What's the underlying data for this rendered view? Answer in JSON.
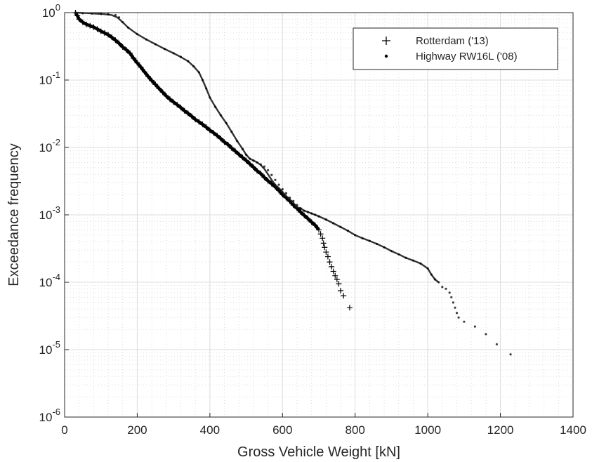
{
  "chart_data": {
    "type": "scatter",
    "xlabel": "Gross Vehicle Weight [kN]",
    "ylabel": "Exceedance frequency",
    "xlim": [
      0,
      1400
    ],
    "ylim": [
      1e-06,
      1
    ],
    "yscale": "log",
    "grid": true,
    "minor_grid": true,
    "legend_position": "top-right",
    "x_ticks": [
      "0",
      "200",
      "400",
      "600",
      "800",
      "1000",
      "1200",
      "1400"
    ],
    "y_ticks": [
      {
        "base": "10",
        "exp": "-6"
      },
      {
        "base": "10",
        "exp": "-5"
      },
      {
        "base": "10",
        "exp": "-4"
      },
      {
        "base": "10",
        "exp": "-3"
      },
      {
        "base": "10",
        "exp": "-2"
      },
      {
        "base": "10",
        "exp": "-1"
      },
      {
        "base": "10",
        "exp": "0"
      }
    ],
    "series": [
      {
        "name": "Rotterdam ('13)",
        "marker": "plus",
        "color": "#000000",
        "points": [
          [
            30,
            1.0
          ],
          [
            35,
            0.9
          ],
          [
            40,
            0.8
          ],
          [
            50,
            0.72
          ],
          [
            60,
            0.67
          ],
          [
            70,
            0.64
          ],
          [
            80,
            0.61
          ],
          [
            90,
            0.57
          ],
          [
            100,
            0.53
          ],
          [
            110,
            0.5
          ],
          [
            120,
            0.47
          ],
          [
            130,
            0.43
          ],
          [
            140,
            0.39
          ],
          [
            150,
            0.35
          ],
          [
            160,
            0.31
          ],
          [
            170,
            0.28
          ],
          [
            180,
            0.25
          ],
          [
            190,
            0.21
          ],
          [
            200,
            0.18
          ],
          [
            210,
            0.155
          ],
          [
            220,
            0.132
          ],
          [
            230,
            0.113
          ],
          [
            240,
            0.098
          ],
          [
            250,
            0.086
          ],
          [
            260,
            0.075
          ],
          [
            270,
            0.066
          ],
          [
            280,
            0.058
          ],
          [
            290,
            0.052
          ],
          [
            300,
            0.047
          ],
          [
            310,
            0.043
          ],
          [
            320,
            0.039
          ],
          [
            330,
            0.035
          ],
          [
            340,
            0.032
          ],
          [
            350,
            0.029
          ],
          [
            360,
            0.026
          ],
          [
            370,
            0.024
          ],
          [
            380,
            0.022
          ],
          [
            390,
            0.02
          ],
          [
            400,
            0.018
          ],
          [
            410,
            0.0165
          ],
          [
            420,
            0.015
          ],
          [
            430,
            0.0135
          ],
          [
            440,
            0.012
          ],
          [
            450,
            0.011
          ],
          [
            460,
            0.0098
          ],
          [
            470,
            0.0088
          ],
          [
            480,
            0.0079
          ],
          [
            490,
            0.0071
          ],
          [
            500,
            0.0064
          ],
          [
            510,
            0.0057
          ],
          [
            520,
            0.0051
          ],
          [
            530,
            0.0045
          ],
          [
            540,
            0.0041
          ],
          [
            550,
            0.0036
          ],
          [
            560,
            0.0032
          ],
          [
            570,
            0.0029
          ],
          [
            580,
            0.0026
          ],
          [
            590,
            0.0023
          ],
          [
            600,
            0.002
          ],
          [
            610,
            0.0018
          ],
          [
            620,
            0.0016
          ],
          [
            630,
            0.0014
          ],
          [
            640,
            0.00125
          ],
          [
            650,
            0.0011
          ],
          [
            660,
            0.00098
          ],
          [
            670,
            0.00088
          ],
          [
            680,
            0.00078
          ],
          [
            690,
            0.0007
          ],
          [
            700,
            0.0006
          ],
          [
            705,
            0.00052
          ],
          [
            710,
            0.00045
          ],
          [
            713,
            0.00038
          ],
          [
            716,
            0.00033
          ],
          [
            720,
            0.00028
          ],
          [
            725,
            0.00024
          ],
          [
            730,
            0.0002
          ],
          [
            735,
            0.00017
          ],
          [
            740,
            0.000145
          ],
          [
            745,
            0.000125
          ],
          [
            750,
            0.00011
          ],
          [
            755,
            9.5e-05
          ],
          [
            760,
            7.5e-05
          ],
          [
            768,
            6.3e-05
          ],
          [
            785,
            4.2e-05
          ]
        ]
      },
      {
        "name": "Highway RW16L ('08)",
        "marker": "dot",
        "color": "#000000",
        "points": [
          [
            30,
            1.0
          ],
          [
            50,
            0.98
          ],
          [
            75,
            0.97
          ],
          [
            100,
            0.96
          ],
          [
            120,
            0.95
          ],
          [
            140,
            0.92
          ],
          [
            150,
            0.85
          ],
          [
            160,
            0.72
          ],
          [
            175,
            0.6
          ],
          [
            200,
            0.48
          ],
          [
            225,
            0.4
          ],
          [
            250,
            0.34
          ],
          [
            275,
            0.29
          ],
          [
            300,
            0.25
          ],
          [
            320,
            0.22
          ],
          [
            340,
            0.19
          ],
          [
            355,
            0.16
          ],
          [
            370,
            0.13
          ],
          [
            380,
            0.1
          ],
          [
            390,
            0.075
          ],
          [
            400,
            0.055
          ],
          [
            415,
            0.04
          ],
          [
            430,
            0.03
          ],
          [
            445,
            0.023
          ],
          [
            460,
            0.017
          ],
          [
            475,
            0.0125
          ],
          [
            490,
            0.0095
          ],
          [
            500,
            0.0078
          ],
          [
            510,
            0.0068
          ],
          [
            520,
            0.0064
          ],
          [
            530,
            0.006
          ],
          [
            540,
            0.0056
          ],
          [
            550,
            0.0052
          ],
          [
            560,
            0.0046
          ],
          [
            570,
            0.0039
          ],
          [
            580,
            0.0033
          ],
          [
            590,
            0.0028
          ],
          [
            600,
            0.0024
          ],
          [
            610,
            0.0021
          ],
          [
            620,
            0.0018
          ],
          [
            630,
            0.0016
          ],
          [
            640,
            0.0014
          ],
          [
            650,
            0.00125
          ],
          [
            660,
            0.00115
          ],
          [
            670,
            0.0011
          ],
          [
            680,
            0.00105
          ],
          [
            690,
            0.001
          ],
          [
            700,
            0.00095
          ],
          [
            720,
            0.00085
          ],
          [
            740,
            0.00075
          ],
          [
            760,
            0.00066
          ],
          [
            780,
            0.00058
          ],
          [
            800,
            0.0005
          ],
          [
            820,
            0.00045
          ],
          [
            840,
            0.00041
          ],
          [
            860,
            0.00037
          ],
          [
            880,
            0.00033
          ],
          [
            900,
            0.00029
          ],
          [
            920,
            0.00026
          ],
          [
            940,
            0.00023
          ],
          [
            960,
            0.00021
          ],
          [
            980,
            0.00019
          ],
          [
            1000,
            0.00016
          ],
          [
            1010,
            0.00013
          ],
          [
            1020,
            0.00011
          ],
          [
            1030,
            0.0001
          ],
          [
            1040,
            8.5e-05
          ],
          [
            1050,
            8e-05
          ],
          [
            1060,
            7e-05
          ],
          [
            1065,
            6e-05
          ],
          [
            1070,
            5e-05
          ],
          [
            1075,
            4.2e-05
          ],
          [
            1080,
            3.5e-05
          ],
          [
            1085,
            3e-05
          ],
          [
            1100,
            2.6e-05
          ],
          [
            1130,
            2.2e-05
          ],
          [
            1160,
            1.7e-05
          ],
          [
            1190,
            1.2e-05
          ],
          [
            1228,
            8.5e-06
          ]
        ]
      },
      {
        "name": "",
        "marker": "line",
        "color": "#333333",
        "points": [
          [
            30,
            1.0
          ],
          [
            50,
            0.99
          ],
          [
            80,
            0.97
          ],
          [
            110,
            0.95
          ],
          [
            130,
            0.92
          ],
          [
            145,
            0.85
          ],
          [
            160,
            0.72
          ],
          [
            175,
            0.6
          ],
          [
            200,
            0.48
          ],
          [
            225,
            0.4
          ],
          [
            250,
            0.34
          ],
          [
            275,
            0.29
          ],
          [
            300,
            0.25
          ],
          [
            320,
            0.22
          ],
          [
            340,
            0.19
          ],
          [
            355,
            0.16
          ],
          [
            370,
            0.13
          ],
          [
            380,
            0.1
          ],
          [
            390,
            0.075
          ],
          [
            400,
            0.055
          ],
          [
            415,
            0.04
          ],
          [
            430,
            0.03
          ],
          [
            445,
            0.023
          ],
          [
            460,
            0.017
          ],
          [
            475,
            0.0125
          ],
          [
            490,
            0.0095
          ],
          [
            500,
            0.0078
          ],
          [
            510,
            0.0068
          ],
          [
            520,
            0.0064
          ],
          [
            530,
            0.006
          ],
          [
            540,
            0.0055
          ],
          [
            550,
            0.0048
          ],
          [
            560,
            0.004
          ],
          [
            570,
            0.0033
          ],
          [
            580,
            0.0028
          ],
          [
            590,
            0.0025
          ],
          [
            600,
            0.0022
          ],
          [
            610,
            0.0019
          ],
          [
            620,
            0.0017
          ],
          [
            630,
            0.0015
          ],
          [
            640,
            0.0013
          ],
          [
            650,
            0.00125
          ],
          [
            660,
            0.00115
          ],
          [
            670,
            0.0011
          ],
          [
            680,
            0.00105
          ],
          [
            690,
            0.001
          ],
          [
            700,
            0.00095
          ],
          [
            720,
            0.00085
          ],
          [
            740,
            0.00075
          ],
          [
            760,
            0.00066
          ],
          [
            780,
            0.00058
          ],
          [
            800,
            0.0005
          ],
          [
            820,
            0.00045
          ],
          [
            840,
            0.00041
          ],
          [
            860,
            0.00037
          ],
          [
            880,
            0.00033
          ],
          [
            900,
            0.00029
          ],
          [
            920,
            0.00026
          ],
          [
            940,
            0.00023
          ],
          [
            960,
            0.00021
          ],
          [
            980,
            0.00019
          ],
          [
            1000,
            0.00016
          ],
          [
            1010,
            0.00013
          ],
          [
            1020,
            0.00011
          ],
          [
            1030,
            0.0001
          ]
        ]
      }
    ],
    "legend": [
      {
        "label": "Rotterdam ('13)",
        "marker": "plus"
      },
      {
        "label": "Highway RW16L ('08)",
        "marker": "dot"
      }
    ]
  }
}
